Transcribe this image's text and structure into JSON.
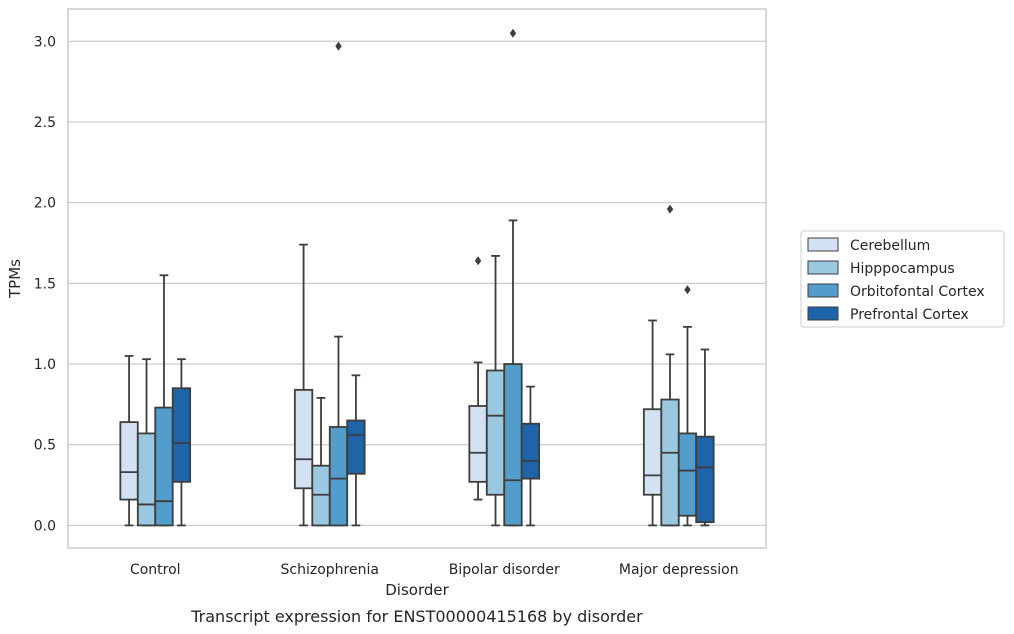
{
  "chart_data": {
    "type": "box",
    "caption": "Transcript expression for ENST00000415168 by disorder",
    "xlabel": "Disorder",
    "ylabel": "TPMs",
    "ylim": [
      -0.14,
      3.2
    ],
    "yticks": [
      0.0,
      0.5,
      1.0,
      1.5,
      2.0,
      2.5,
      3.0
    ],
    "ytick_labels": [
      "0.0",
      "0.5",
      "1.0",
      "1.5",
      "2.0",
      "2.5",
      "3.0"
    ],
    "grid": "horizontal",
    "legend_position": "right",
    "categories": [
      "Control",
      "Schizophrenia",
      "Bipolar disorder",
      "Major depression"
    ],
    "series": [
      {
        "name": "Cerebellum",
        "color": "#d2e2f3",
        "boxes": [
          {
            "whislo": 0.0,
            "q1": 0.16,
            "med": 0.33,
            "q3": 0.64,
            "whishi": 1.05,
            "fliers": []
          },
          {
            "whislo": 0.0,
            "q1": 0.23,
            "med": 0.41,
            "q3": 0.84,
            "whishi": 1.74,
            "fliers": []
          },
          {
            "whislo": 0.16,
            "q1": 0.27,
            "med": 0.45,
            "q3": 0.74,
            "whishi": 1.01,
            "fliers": [
              1.64
            ]
          },
          {
            "whislo": 0.0,
            "q1": 0.19,
            "med": 0.31,
            "q3": 0.72,
            "whishi": 1.27,
            "fliers": []
          }
        ]
      },
      {
        "name": "Hipppocampus",
        "color": "#9ac8e0",
        "boxes": [
          {
            "whislo": 0.0,
            "q1": 0.0,
            "med": 0.13,
            "q3": 0.57,
            "whishi": 1.03,
            "fliers": []
          },
          {
            "whislo": 0.0,
            "q1": 0.0,
            "med": 0.19,
            "q3": 0.37,
            "whishi": 0.79,
            "fliers": []
          },
          {
            "whislo": 0.0,
            "q1": 0.19,
            "med": 0.68,
            "q3": 0.96,
            "whishi": 1.67,
            "fliers": []
          },
          {
            "whislo": 0.0,
            "q1": 0.0,
            "med": 0.45,
            "q3": 0.78,
            "whishi": 1.06,
            "fliers": [
              1.96
            ]
          }
        ]
      },
      {
        "name": "Orbitofontal Cortex",
        "color": "#529dcb",
        "boxes": [
          {
            "whislo": 0.0,
            "q1": 0.0,
            "med": 0.15,
            "q3": 0.73,
            "whishi": 1.55,
            "fliers": []
          },
          {
            "whislo": 0.0,
            "q1": 0.0,
            "med": 0.29,
            "q3": 0.61,
            "whishi": 1.17,
            "fliers": [
              2.97
            ]
          },
          {
            "whislo": 0.0,
            "q1": 0.0,
            "med": 0.28,
            "q3": 1.0,
            "whishi": 1.89,
            "fliers": [
              3.05
            ]
          },
          {
            "whislo": 0.0,
            "q1": 0.06,
            "med": 0.34,
            "q3": 0.57,
            "whishi": 1.23,
            "fliers": [
              1.46
            ]
          }
        ]
      },
      {
        "name": "Prefrontal Cortex",
        "color": "#1f63a8",
        "boxes": [
          {
            "whislo": 0.0,
            "q1": 0.27,
            "med": 0.51,
            "q3": 0.85,
            "whishi": 1.03,
            "fliers": []
          },
          {
            "whislo": 0.0,
            "q1": 0.32,
            "med": 0.56,
            "q3": 0.65,
            "whishi": 0.93,
            "fliers": []
          },
          {
            "whislo": 0.0,
            "q1": 0.29,
            "med": 0.4,
            "q3": 0.63,
            "whishi": 0.86,
            "fliers": []
          },
          {
            "whislo": 0.0,
            "q1": 0.02,
            "med": 0.36,
            "q3": 0.55,
            "whishi": 1.09,
            "fliers": []
          }
        ]
      }
    ]
  }
}
